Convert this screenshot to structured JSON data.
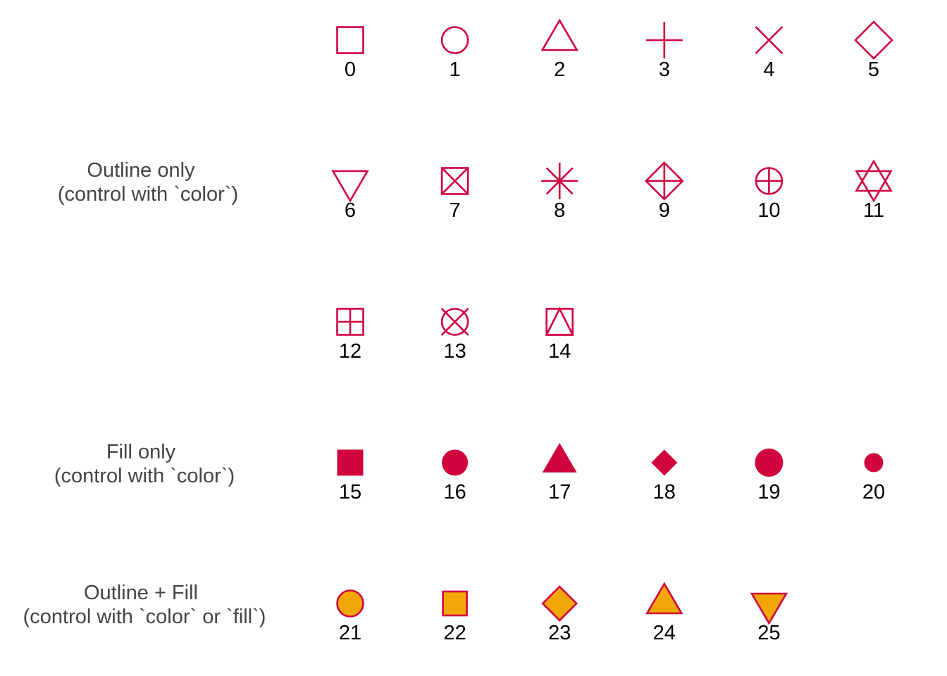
{
  "chart_data": {
    "type": "scatter",
    "title": "",
    "xlabel": "",
    "ylabel": "",
    "grid": false,
    "colors": {
      "outline": "#D0033F",
      "fill": "#F2A707",
      "label_text": "#444444",
      "number_text": "#000000"
    },
    "groups": [
      {
        "name": "outline",
        "lines": [
          "Outline only",
          "(control with `color`)"
        ]
      },
      {
        "name": "fill",
        "lines": [
          "Fill only",
          "(control with `color`)"
        ]
      },
      {
        "name": "outline_fill",
        "lines": [
          "Outline + Fill",
          "(control with `color` or `fill`)"
        ]
      }
    ],
    "shapes": [
      {
        "id": 0,
        "label": "0",
        "kind": "open-square",
        "group": "outline",
        "col": 1,
        "row": 1
      },
      {
        "id": 1,
        "label": "1",
        "kind": "open-circle",
        "group": "outline",
        "col": 2,
        "row": 1
      },
      {
        "id": 2,
        "label": "2",
        "kind": "open-triangle-up",
        "group": "outline",
        "col": 3,
        "row": 1
      },
      {
        "id": 3,
        "label": "3",
        "kind": "plus",
        "group": "outline",
        "col": 4,
        "row": 1
      },
      {
        "id": 4,
        "label": "4",
        "kind": "cross",
        "group": "outline",
        "col": 5,
        "row": 1
      },
      {
        "id": 5,
        "label": "5",
        "kind": "open-diamond",
        "group": "outline",
        "col": 6,
        "row": 1
      },
      {
        "id": 6,
        "label": "6",
        "kind": "open-triangle-down",
        "group": "outline",
        "col": 1,
        "row": 2
      },
      {
        "id": 7,
        "label": "7",
        "kind": "square-cross",
        "group": "outline",
        "col": 2,
        "row": 2
      },
      {
        "id": 8,
        "label": "8",
        "kind": "asterisk",
        "group": "outline",
        "col": 3,
        "row": 2
      },
      {
        "id": 9,
        "label": "9",
        "kind": "diamond-plus",
        "group": "outline",
        "col": 4,
        "row": 2
      },
      {
        "id": 10,
        "label": "10",
        "kind": "circle-plus",
        "group": "outline",
        "col": 5,
        "row": 2
      },
      {
        "id": 11,
        "label": "11",
        "kind": "star-of-david",
        "group": "outline",
        "col": 6,
        "row": 2
      },
      {
        "id": 12,
        "label": "12",
        "kind": "square-plus",
        "group": "outline",
        "col": 1,
        "row": 3
      },
      {
        "id": 13,
        "label": "13",
        "kind": "circle-cross",
        "group": "outline",
        "col": 2,
        "row": 3
      },
      {
        "id": 14,
        "label": "14",
        "kind": "square-triangle",
        "group": "outline",
        "col": 3,
        "row": 3
      },
      {
        "id": 15,
        "label": "15",
        "kind": "filled-square",
        "group": "fill",
        "col": 1,
        "row": 4
      },
      {
        "id": 16,
        "label": "16",
        "kind": "filled-circle",
        "group": "fill",
        "col": 2,
        "row": 4
      },
      {
        "id": 17,
        "label": "17",
        "kind": "filled-triangle-up",
        "group": "fill",
        "col": 3,
        "row": 4
      },
      {
        "id": 18,
        "label": "18",
        "kind": "filled-diamond",
        "group": "fill",
        "col": 4,
        "row": 4
      },
      {
        "id": 19,
        "label": "19",
        "kind": "filled-circle-large",
        "group": "fill",
        "col": 5,
        "row": 4
      },
      {
        "id": 20,
        "label": "20",
        "kind": "filled-circle-small",
        "group": "fill",
        "col": 6,
        "row": 4
      },
      {
        "id": 21,
        "label": "21",
        "kind": "fill-circle",
        "group": "outline_fill",
        "col": 1,
        "row": 5
      },
      {
        "id": 22,
        "label": "22",
        "kind": "fill-square",
        "group": "outline_fill",
        "col": 2,
        "row": 5
      },
      {
        "id": 23,
        "label": "23",
        "kind": "fill-diamond",
        "group": "outline_fill",
        "col": 3,
        "row": 5
      },
      {
        "id": 24,
        "label": "24",
        "kind": "fill-triangle-up",
        "group": "outline_fill",
        "col": 4,
        "row": 5
      },
      {
        "id": 25,
        "label": "25",
        "kind": "fill-triangle-down",
        "group": "outline_fill",
        "col": 5,
        "row": 5
      }
    ]
  }
}
